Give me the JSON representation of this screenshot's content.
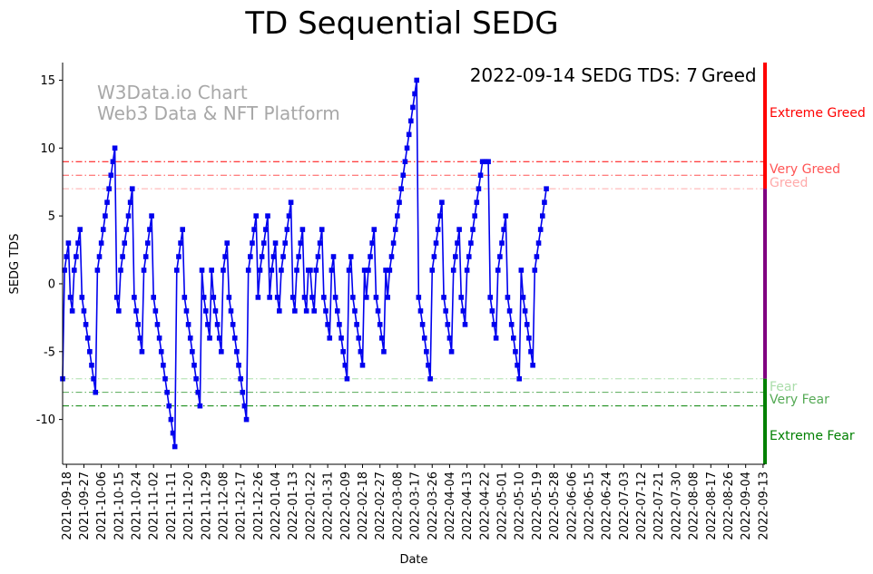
{
  "chart_data": {
    "type": "line",
    "title": "TD Sequential SEDG",
    "xlabel": "Date",
    "ylabel": "SEDG TDS",
    "ylim": [
      -13.3,
      16.3
    ],
    "yticks": [
      -10,
      -5,
      0,
      5,
      10,
      15
    ],
    "x_start": "2021-09-16",
    "x_end": "2022-09-14",
    "xtick_labels": [
      "2021-09-18",
      "2021-09-27",
      "2021-10-06",
      "2021-10-15",
      "2021-10-24",
      "2021-11-02",
      "2021-11-11",
      "2021-11-20",
      "2021-11-29",
      "2021-12-08",
      "2021-12-17",
      "2021-12-26",
      "2022-01-04",
      "2022-01-13",
      "2022-01-22",
      "2022-01-31",
      "2022-02-09",
      "2022-02-18",
      "2022-02-27",
      "2022-03-08",
      "2022-03-17",
      "2022-03-26",
      "2022-04-04",
      "2022-04-13",
      "2022-04-22",
      "2022-05-01",
      "2022-05-10",
      "2022-05-19",
      "2022-05-28",
      "2022-06-06",
      "2022-06-15",
      "2022-06-24",
      "2022-07-03",
      "2022-07-12",
      "2022-07-21",
      "2022-07-30",
      "2022-08-08",
      "2022-08-17",
      "2022-08-26",
      "2022-09-04",
      "2022-09-13"
    ],
    "series": [
      {
        "color": "#0000ee",
        "marker": "square",
        "values": [
          -7,
          1,
          2,
          3,
          -1,
          -2,
          1,
          2,
          3,
          4,
          -1,
          -2,
          -3,
          -4,
          -5,
          -6,
          -7,
          -8,
          1,
          2,
          3,
          4,
          5,
          6,
          7,
          8,
          9,
          10,
          -1,
          -2,
          1,
          2,
          3,
          4,
          5,
          6,
          7,
          -1,
          -2,
          -3,
          -4,
          -5,
          1,
          2,
          3,
          4,
          5,
          -1,
          -2,
          -3,
          -4,
          -5,
          -6,
          -7,
          -8,
          -9,
          -10,
          -11,
          -12,
          1,
          2,
          3,
          4,
          -1,
          -2,
          -3,
          -4,
          -5,
          -6,
          -7,
          -8,
          -9,
          1,
          -1,
          -2,
          -3,
          -4,
          1,
          -1,
          -2,
          -3,
          -4,
          -5,
          1,
          2,
          3,
          -1,
          -2,
          -3,
          -4,
          -5,
          -6,
          -7,
          -8,
          -9,
          -10,
          1,
          2,
          3,
          4,
          5,
          -1,
          1,
          2,
          3,
          4,
          5,
          -1,
          1,
          2,
          3,
          -1,
          -2,
          1,
          2,
          3,
          4,
          5,
          6,
          -1,
          -2,
          1,
          2,
          3,
          4,
          -1,
          -2,
          1,
          1,
          -1,
          -2,
          1,
          2,
          3,
          4,
          -1,
          -2,
          -3,
          -4,
          1,
          2,
          -1,
          -2,
          -3,
          -4,
          -5,
          -6,
          -7,
          1,
          2,
          -1,
          -2,
          -3,
          -4,
          -5,
          -6,
          1,
          -1,
          1,
          2,
          3,
          4,
          -1,
          -2,
          -3,
          -4,
          -5,
          1,
          -1,
          1,
          2,
          3,
          4,
          5,
          6,
          7,
          8,
          9,
          10,
          11,
          12,
          13,
          14,
          15,
          -1,
          -2,
          -3,
          -4,
          -5,
          -6,
          -7,
          1,
          2,
          3,
          4,
          5,
          6,
          -1,
          -2,
          -3,
          -4,
          -5,
          1,
          2,
          3,
          4,
          -1,
          -2,
          -3,
          1,
          2,
          3,
          4,
          5,
          6,
          7,
          8,
          9,
          9,
          9,
          9,
          -1,
          -2,
          -3,
          -4,
          1,
          2,
          3,
          4,
          5,
          -1,
          -2,
          -3,
          -4,
          -5,
          -6,
          -7,
          1,
          -1,
          -2,
          -3,
          -4,
          -5,
          -6,
          1,
          2,
          3,
          4,
          5,
          6,
          7
        ]
      }
    ],
    "thresholds": [
      {
        "value": 9,
        "label": "Extreme Greed",
        "color": "#ff0000"
      },
      {
        "value": 8,
        "label": "Very Greed",
        "color": "#ff5555"
      },
      {
        "value": 7,
        "label": "Greed",
        "color": "#ffaaaa"
      },
      {
        "value": -7,
        "label": "Fear",
        "color": "#aaddaa"
      },
      {
        "value": -8,
        "label": "Very Fear",
        "color": "#55aa55"
      },
      {
        "value": -9,
        "label": "Extreme Fear",
        "color": "#008000"
      }
    ],
    "zone_bar_colors": [
      "#ff0000",
      "#800080",
      "#008000"
    ],
    "watermark": [
      "W3Data.io Chart",
      "Web3 Data & NFT Platform"
    ],
    "annotation_text": "2022-09-14 SEDG TDS: 7",
    "annotation_status": "Greed",
    "annotation_status_color": "#ffaaaa",
    "grid": false
  }
}
